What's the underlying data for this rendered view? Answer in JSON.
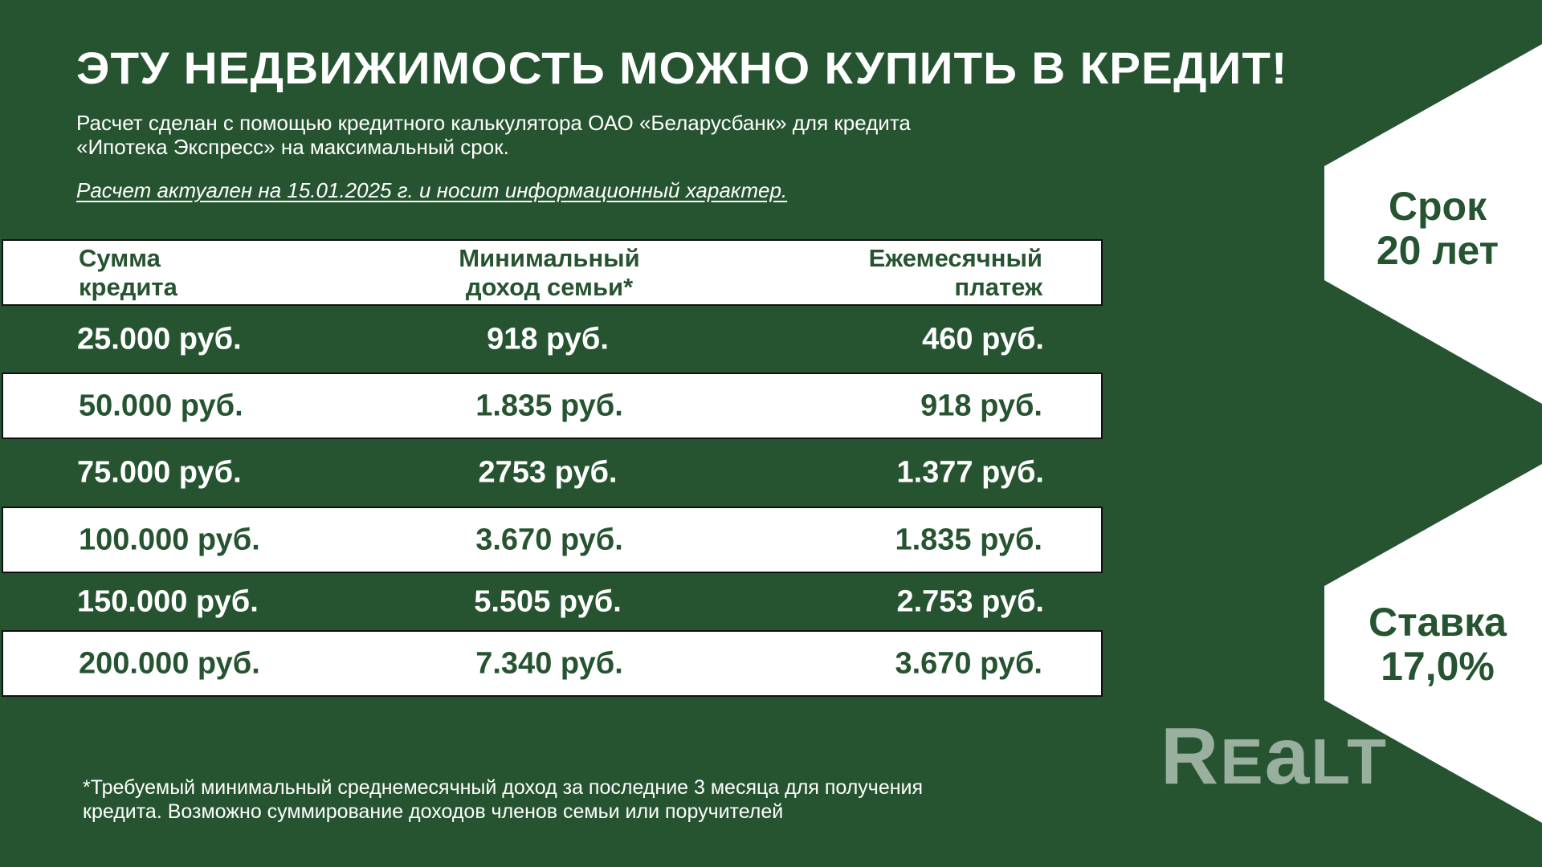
{
  "title": "ЭТУ НЕДВИЖИМОСТЬ МОЖНО КУПИТЬ В КРЕДИТ!",
  "subtitle_line1": "Расчет сделан с помощью кредитного калькулятора ОАО «Беларусбанк» для кредита",
  "subtitle_line2": "«Ипотека Экспресс» на максимальный срок.",
  "note": "Расчет актуален на 15.01.2025 г. и носит информационный характер.",
  "table": {
    "headers": [
      [
        "Сумма",
        "кредита"
      ],
      [
        "Минимальный",
        "доход семьи*"
      ],
      [
        "Ежемесячный",
        "платеж"
      ]
    ],
    "rows": [
      [
        "25.000 руб.",
        "918 руб.",
        "460 руб."
      ],
      [
        "50.000 руб.",
        "1.835 руб.",
        "918 руб."
      ],
      [
        "75.000 руб.",
        "2753 руб.",
        "1.377 руб."
      ],
      [
        "100.000 руб.",
        "3.670 руб.",
        "1.835 руб."
      ],
      [
        "150.000 руб.",
        "5.505 руб.",
        "2.753 руб."
      ],
      [
        "200.000 руб.",
        "7.340 руб.",
        "3.670 руб."
      ]
    ]
  },
  "term": {
    "label": "Срок",
    "value": "20 лет"
  },
  "rate": {
    "label": "Ставка",
    "value": "17,0%"
  },
  "logo": "REALT",
  "footnote_line1": "*Требуемый минимальный среднемесячный доход за последние 3 месяца для получения",
  "footnote_line2": "кредита. Возможно суммирование доходов членов семьи или поручителей",
  "colors": {
    "background": "#265431",
    "panel": "#ffffff",
    "logo": "#9fb5a3"
  }
}
